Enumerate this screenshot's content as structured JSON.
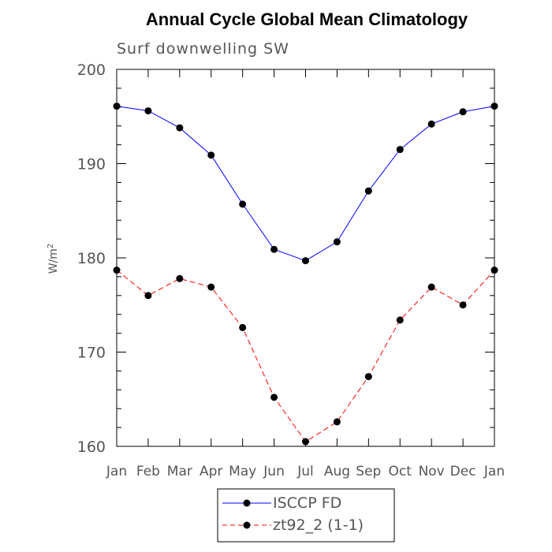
{
  "chart_data": {
    "type": "line",
    "title": "Annual Cycle Global Mean Climatology",
    "subtitle": "Surf downwelling SW",
    "ylabel": "W/m",
    "ylabel_superscript": "2",
    "xlabel": "",
    "categories": [
      "Jan",
      "Feb",
      "Mar",
      "Apr",
      "May",
      "Jun",
      "Jul",
      "Aug",
      "Sep",
      "Oct",
      "Nov",
      "Dec",
      "Jan"
    ],
    "ylim": [
      160,
      200
    ],
    "yticks": [
      160,
      170,
      180,
      190,
      200
    ],
    "series": [
      {
        "name": "ISCCP FD",
        "color": "#0000ff",
        "dash": "solid",
        "values": [
          196.1,
          195.6,
          193.8,
          190.9,
          185.7,
          180.9,
          179.7,
          181.7,
          187.1,
          191.5,
          194.2,
          195.5,
          196.1
        ]
      },
      {
        "name": "zt92_2 (1-1)",
        "color": "#ff0000",
        "dash": "dashed",
        "values": [
          178.7,
          176.0,
          177.8,
          176.9,
          172.6,
          165.2,
          160.5,
          162.6,
          167.4,
          173.4,
          176.9,
          175.0,
          178.7
        ]
      }
    ],
    "legend_position": "bottom-center",
    "marker": "filled-circle",
    "marker_color": "#000000"
  }
}
